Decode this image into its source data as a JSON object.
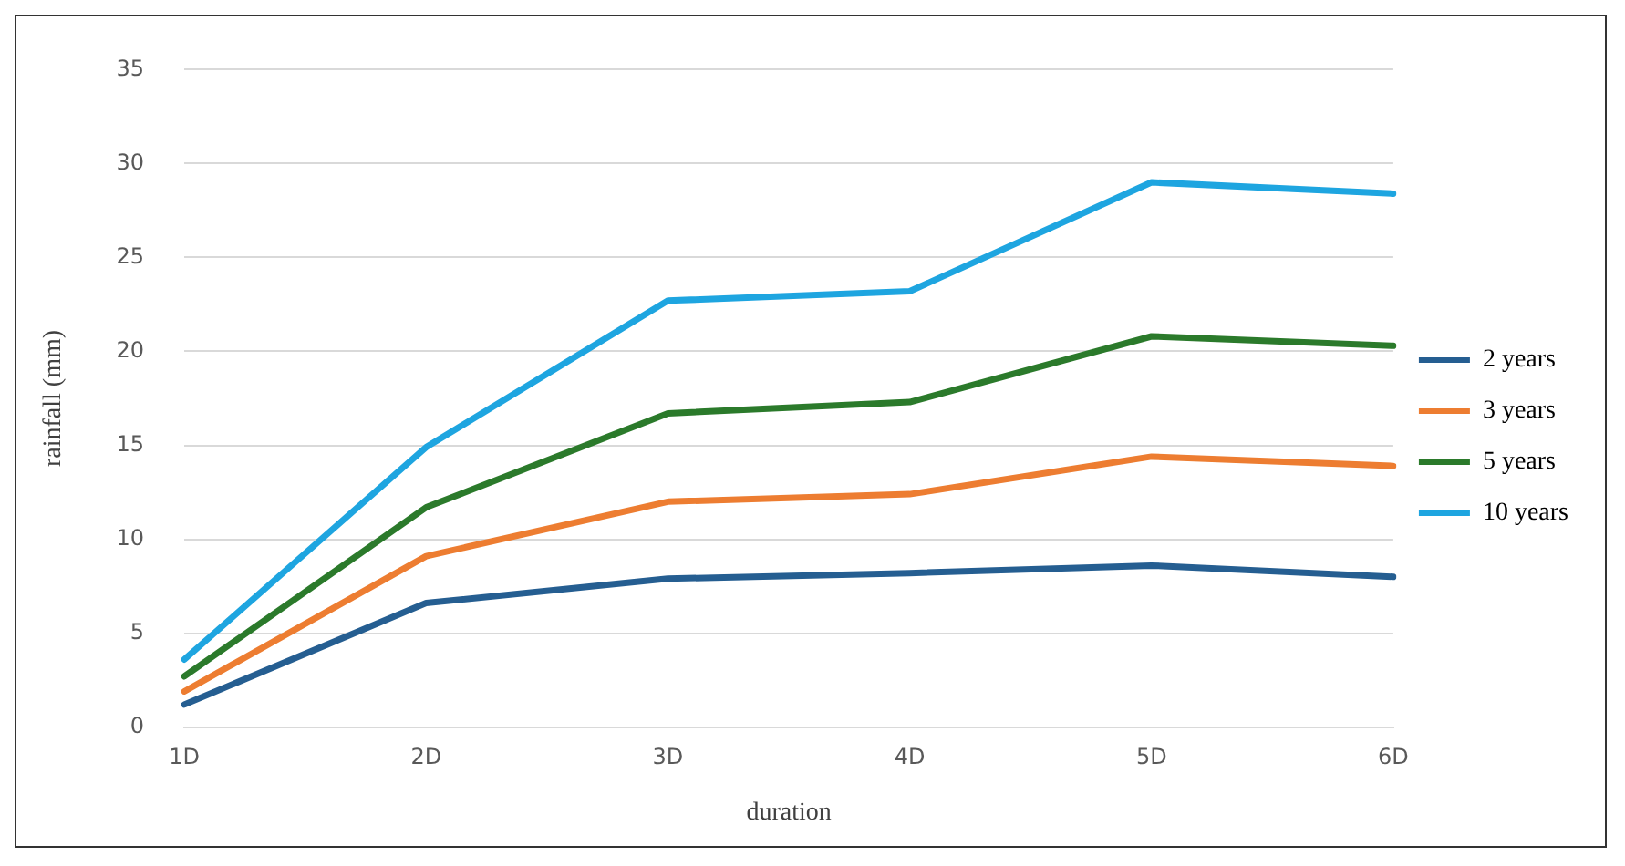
{
  "chart_data": {
    "type": "line",
    "xlabel": "duration",
    "ylabel": "rainfall (mm)",
    "categories": [
      "1D",
      "2D",
      "3D",
      "4D",
      "5D",
      "6D"
    ],
    "series": [
      {
        "name": "2 years",
        "color": "#255e91",
        "values": [
          1.2,
          6.6,
          7.9,
          8.2,
          8.6,
          8.0
        ]
      },
      {
        "name": "3 years",
        "color": "#ed7d31",
        "values": [
          1.9,
          9.1,
          12.0,
          12.4,
          14.4,
          13.9
        ]
      },
      {
        "name": "5 years",
        "color": "#2b7a2b",
        "values": [
          2.7,
          11.7,
          16.7,
          17.3,
          20.8,
          20.3
        ]
      },
      {
        "name": "10 years",
        "color": "#1ea5e0",
        "values": [
          3.6,
          14.9,
          22.7,
          23.2,
          29.0,
          28.4
        ]
      }
    ],
    "ylim": [
      0,
      35
    ],
    "yticks": [
      0,
      5,
      10,
      15,
      20,
      25,
      30,
      35
    ],
    "grid": "y",
    "legend": "right",
    "marker": "none",
    "line_style": "solid"
  }
}
